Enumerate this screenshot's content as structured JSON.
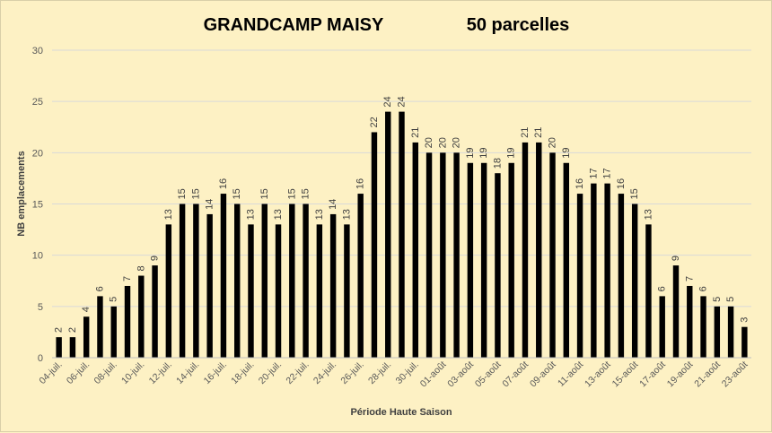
{
  "chart_data": {
    "type": "bar",
    "title": "GRANDCAMP MAISY",
    "subtitle": "50 parcelles",
    "xlabel": "Période Haute Saison",
    "ylabel": "NB emplacements",
    "ylim": [
      0,
      30
    ],
    "yticks": [
      0,
      5,
      10,
      15,
      20,
      25,
      30
    ],
    "grid": true,
    "categories": [
      "04-juil.",
      "05-juil.",
      "06-juil.",
      "07-juil.",
      "08-juil.",
      "09-juil.",
      "10-juil.",
      "11-juil.",
      "12-juil.",
      "13-juil.",
      "14-juil.",
      "15-juil.",
      "16-juil.",
      "17-juil.",
      "18-juil.",
      "19-juil.",
      "20-juil.",
      "21-juil.",
      "22-juil.",
      "23-juil.",
      "24-juil.",
      "25-juil.",
      "26-juil.",
      "27-juil.",
      "28-juil.",
      "29-juil.",
      "30-juil.",
      "31-juil.",
      "01-août",
      "02-août",
      "03-août",
      "04-août",
      "05-août",
      "06-août",
      "07-août",
      "08-août",
      "09-août",
      "10-août",
      "11-août",
      "12-août",
      "13-août",
      "14-août",
      "15-août",
      "16-août",
      "17-août",
      "18-août",
      "19-août",
      "20-août",
      "21-août",
      "22-août",
      "23-août"
    ],
    "values": [
      2,
      2,
      4,
      6,
      5,
      7,
      8,
      9,
      13,
      15,
      15,
      14,
      16,
      15,
      13,
      15,
      13,
      15,
      15,
      13,
      14,
      13,
      16,
      22,
      24,
      24,
      21,
      20,
      20,
      20,
      19,
      19,
      18,
      19,
      21,
      21,
      20,
      19,
      16,
      17,
      17,
      16,
      15,
      13,
      6,
      9,
      7,
      6,
      5,
      5,
      3
    ],
    "tick_label_every": 2,
    "bar_color": "#000000",
    "background_color": "#fdf1c4",
    "grid_color": "#d9d9d9"
  }
}
